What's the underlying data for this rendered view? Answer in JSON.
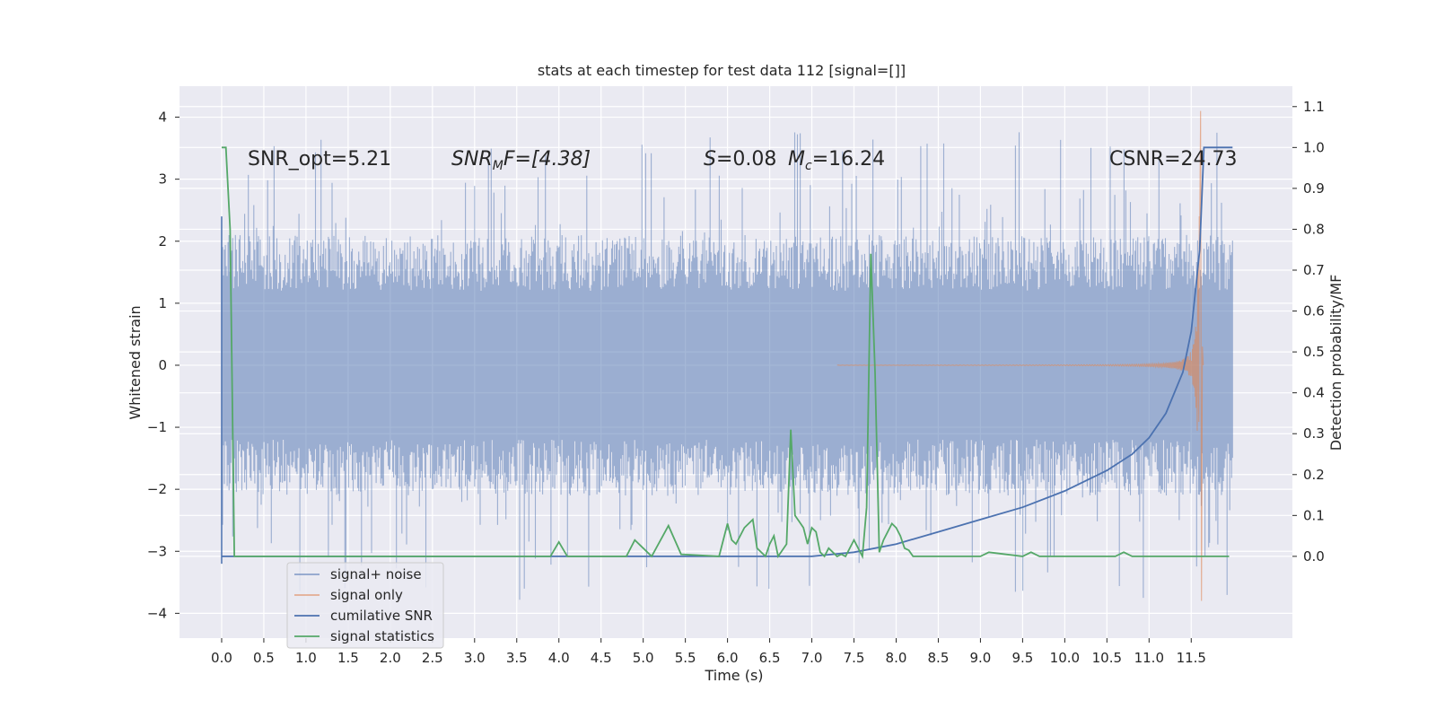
{
  "chart_data": {
    "type": "line",
    "title": "stats at each timestep for test data 112 [signal=[]]",
    "xlabel": "Time (s)",
    "ylabel_left": "Whitened strain",
    "ylabel_right": "Detection probability/MF",
    "xlim": [
      -0.5,
      12.7
    ],
    "ylim_left": [
      -4.4,
      4.5
    ],
    "ylim_right": [
      -0.2,
      1.15
    ],
    "x_ticks": [
      "0.0",
      "0.5",
      "1.0",
      "1.5",
      "2.0",
      "2.5",
      "3.0",
      "3.5",
      "4.0",
      "4.5",
      "5.0",
      "5.5",
      "6.0",
      "6.5",
      "7.0",
      "7.5",
      "8.0",
      "8.5",
      "9.0",
      "9.5",
      "10.0",
      "10.5",
      "11.0",
      "11.5"
    ],
    "y_ticks_left": [
      "4",
      "3",
      "2",
      "1",
      "0",
      "−1",
      "−2",
      "−3",
      "−4"
    ],
    "y_ticks_right": [
      "1.1",
      "1.0",
      "0.9",
      "0.8",
      "0.7",
      "0.6",
      "0.5",
      "0.4",
      "0.3",
      "0.2",
      "0.1",
      "0.0"
    ],
    "grid": true,
    "legend_position": "bottom-left",
    "annotations": {
      "snr_opt": "SNR_opt=5.21",
      "snr_mf_label": "SNR",
      "snr_mf_sub": "M",
      "snr_mf_tail": "F=[4.38]",
      "s_label": "S",
      "s_value": "=0.08",
      "mc_label": "M",
      "mc_sub": "c",
      "mc_value": "=16.24",
      "csnr": "CSNR=24.73"
    },
    "series": [
      {
        "name": "signal+ noise",
        "color": "#4c72b0",
        "axis": "left",
        "description": "whitened strain noise, amplitude mostly within ±2 with spikes to ±3.8",
        "envelope_typical": 2.0,
        "spike_max": 3.8
      },
      {
        "name": "signal only",
        "color": "#dd8452",
        "axis": "left",
        "chirp": {
          "start": 7.3,
          "merger": 11.6,
          "peak_amplitude": 4.1,
          "min_amplitude": -3.8
        }
      },
      {
        "name": "cumilative SNR",
        "color": "#4c72b0",
        "axis": "right",
        "x": [
          0.0,
          7.0,
          7.5,
          8.0,
          8.5,
          9.0,
          9.5,
          10.0,
          10.5,
          10.8,
          11.0,
          11.2,
          11.4,
          11.5,
          11.6,
          11.65,
          11.99
        ],
        "y": [
          0.0,
          0.0,
          0.01,
          0.03,
          0.06,
          0.09,
          0.12,
          0.16,
          0.21,
          0.25,
          0.29,
          0.35,
          0.45,
          0.55,
          0.75,
          1.0,
          1.0
        ]
      },
      {
        "name": "signal statistics",
        "color": "#55a868",
        "axis": "right",
        "x": [
          0.0,
          0.05,
          0.1,
          0.15,
          0.5,
          3.9,
          4.0,
          4.1,
          4.8,
          4.9,
          5.0,
          5.1,
          5.3,
          5.45,
          5.9,
          6.0,
          6.05,
          6.1,
          6.2,
          6.3,
          6.35,
          6.45,
          6.5,
          6.55,
          6.6,
          6.7,
          6.75,
          6.8,
          6.9,
          6.95,
          7.0,
          7.05,
          7.1,
          7.15,
          7.2,
          7.3,
          7.35,
          7.4,
          7.5,
          7.6,
          7.65,
          7.7,
          7.75,
          7.8,
          7.85,
          7.9,
          7.95,
          8.0,
          8.05,
          8.1,
          8.15,
          8.2,
          8.3,
          8.5,
          9.0,
          9.1,
          9.5,
          9.6,
          9.7,
          10.6,
          10.7,
          10.8,
          11.95
        ],
        "y": [
          1.0,
          1.0,
          0.8,
          0.0,
          0.0,
          0.0,
          0.035,
          0.0,
          0.0,
          0.04,
          0.02,
          0.0,
          0.075,
          0.005,
          0.0,
          0.08,
          0.04,
          0.03,
          0.07,
          0.09,
          0.02,
          0.0,
          0.03,
          0.05,
          0.0,
          0.03,
          0.31,
          0.1,
          0.07,
          0.03,
          0.07,
          0.06,
          0.01,
          0.0,
          0.02,
          0.0,
          0.005,
          0.0,
          0.04,
          0.0,
          0.12,
          0.74,
          0.45,
          0.01,
          0.04,
          0.06,
          0.08,
          0.07,
          0.05,
          0.02,
          0.015,
          0.0,
          0.0,
          0.0,
          0.0,
          0.01,
          0.0,
          0.01,
          0.0,
          0.0,
          0.01,
          0.0,
          0.0
        ]
      }
    ]
  }
}
